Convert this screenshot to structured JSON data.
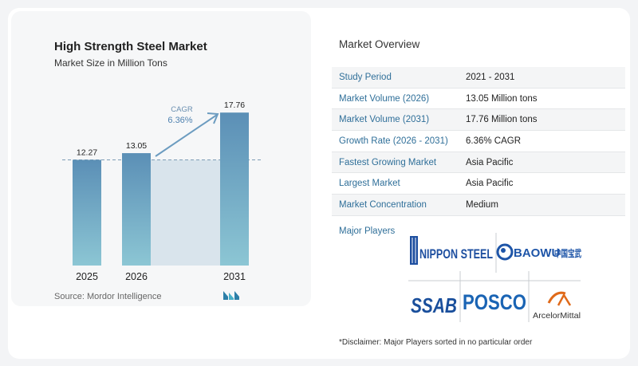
{
  "chart_data": {
    "type": "bar",
    "title": "High Strength Steel Market",
    "subtitle": "Market Size in Million Tons",
    "categories": [
      "2025",
      "2026",
      "2031"
    ],
    "values": [
      12.27,
      13.05,
      17.76
    ],
    "value_labels": [
      "12.27",
      "13.05",
      "17.76"
    ],
    "cagr_label": "CAGR",
    "cagr_value": "6.36%",
    "reference_line_value": 12.27,
    "colors": {
      "bar_top": "#5b8fb6",
      "bar_bottom": "#8cc6d4",
      "arrow": "#6c9cc0",
      "shade": "#d9e4ec"
    }
  },
  "source": "Source:  Mordor Intelligence",
  "overview": {
    "title": "Market Overview",
    "rows": [
      {
        "label": "Study Period",
        "value": "2021 - 2031"
      },
      {
        "label": "Market Volume (2026)",
        "value": "13.05 Million tons"
      },
      {
        "label": "Market Volume (2031)",
        "value": "17.76 Million tons"
      },
      {
        "label": "Growth Rate (2026 - 2031)",
        "value": "6.36% CAGR"
      },
      {
        "label": "Fastest Growing Market",
        "value": "Asia Pacific"
      },
      {
        "label": "Largest Market",
        "value": "Asia Pacific"
      },
      {
        "label": "Market Concentration",
        "value": "Medium"
      }
    ]
  },
  "players": {
    "label": "Major Players",
    "logos": [
      "NIPPON STEEL",
      "BAOWU",
      "中国宝武",
      "SSAB",
      "POSCO",
      "ArcelorMittal"
    ]
  },
  "disclaimer": "*Disclaimer: Major Players sorted in no particular order"
}
